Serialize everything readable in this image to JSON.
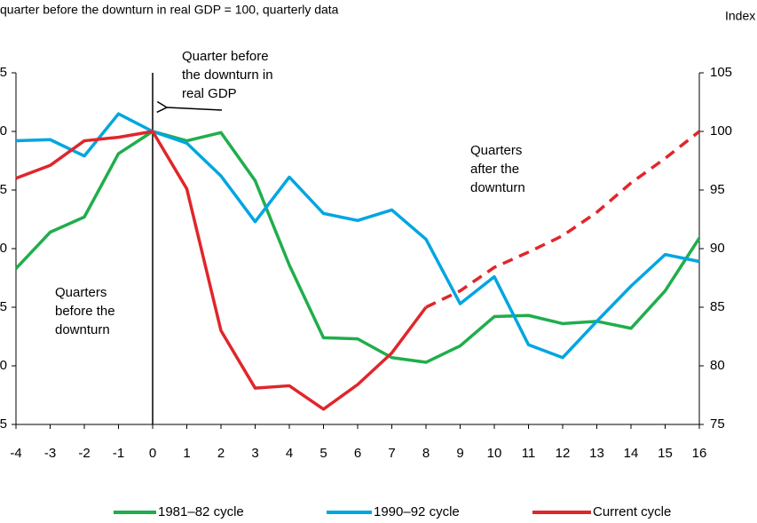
{
  "chart_data": {
    "type": "line",
    "subtitle": "quarter before the downturn in real GDP = 100, quarterly data",
    "y_axis_label": "Index",
    "x": [
      -4,
      -3,
      -2,
      -1,
      0,
      1,
      2,
      3,
      4,
      5,
      6,
      7,
      8,
      9,
      10,
      11,
      12,
      13,
      14,
      15,
      16
    ],
    "xlim": [
      -4,
      16
    ],
    "xticks": [
      -4,
      -3,
      -2,
      -1,
      0,
      1,
      2,
      3,
      4,
      5,
      6,
      7,
      8,
      9,
      10,
      11,
      12,
      13,
      14,
      15,
      16
    ],
    "ylim": [
      75,
      105
    ],
    "yticks": [
      75,
      80,
      85,
      90,
      95,
      100,
      105
    ],
    "reference_x": 0,
    "dashed_from": 8,
    "series": [
      {
        "name": "1981–82 cycle",
        "color": "#1fae4b",
        "values": [
          88.3,
          91.4,
          92.7,
          98.1,
          100,
          99.2,
          99.9,
          95.8,
          88.6,
          82.4,
          82.3,
          80.7,
          80.3,
          81.7,
          84.2,
          84.3,
          83.6,
          83.8,
          83.2,
          86.4,
          90.9
        ]
      },
      {
        "name": "1990–92 cycle",
        "color": "#00a6e0",
        "values": [
          99.2,
          99.3,
          97.9,
          101.5,
          100,
          99.0,
          96.2,
          92.3,
          96.1,
          93.0,
          92.4,
          93.3,
          90.8,
          85.3,
          87.6,
          81.8,
          80.7,
          83.8,
          86.8,
          89.5,
          88.9
        ]
      },
      {
        "name": "Current cycle",
        "color": "#e0262b",
        "values": [
          96.0,
          97.1,
          99.2,
          99.5,
          100,
          95.1,
          83.0,
          78.1,
          78.3,
          76.3,
          78.4,
          81.1,
          85.0,
          86.4,
          88.4,
          89.7,
          91.1,
          93.1,
          95.6,
          97.7,
          100
        ]
      }
    ],
    "annotations": [
      {
        "lines": [
          "Quarter before",
          "the downturn in",
          "real GDP"
        ]
      },
      {
        "lines": [
          "Quarters",
          "after the",
          "downturn"
        ]
      },
      {
        "lines": [
          "Quarters",
          "before the",
          "downturn"
        ]
      }
    ]
  }
}
